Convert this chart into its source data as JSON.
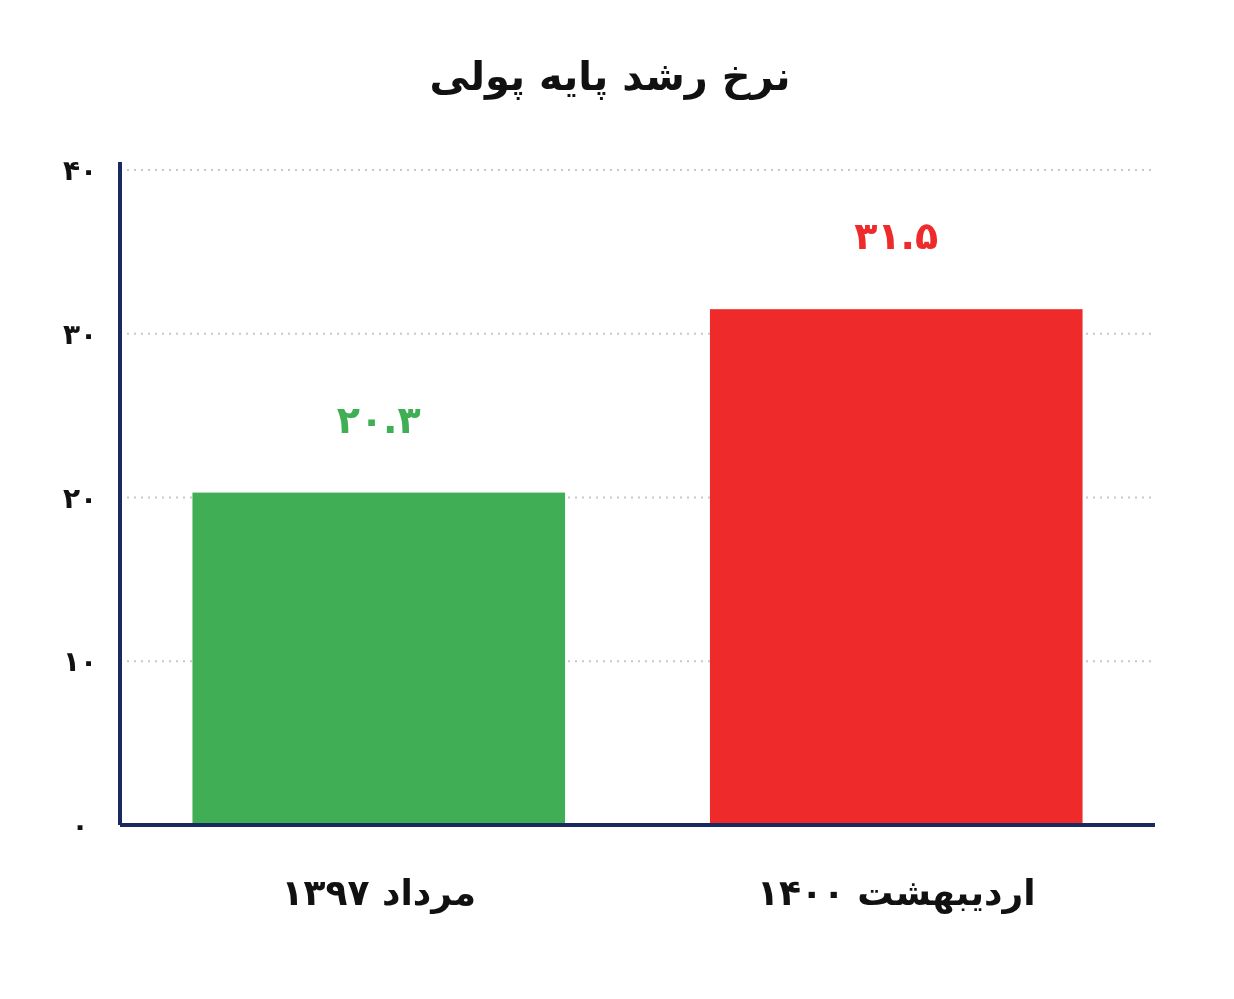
{
  "chart_data": {
    "type": "bar",
    "title": "نرخ رشد پایه پولی",
    "categories": [
      "مرداد ۱۳۹۷",
      "اردیبهشت ۱۴۰۰"
    ],
    "values": [
      20.3,
      31.5
    ],
    "colors": [
      "#3fae55",
      "#ee2a2a"
    ],
    "value_labels": [
      "۲۰.۳",
      "۳۱.۵"
    ],
    "ylim": [
      0,
      40
    ],
    "yticks": [
      {
        "value": 0,
        "label": "۰"
      },
      {
        "value": 10,
        "label": "۱۰"
      },
      {
        "value": 20,
        "label": "۲۰"
      },
      {
        "value": 30,
        "label": "۳۰"
      },
      {
        "value": 40,
        "label": "۴۰"
      }
    ],
    "grid": "y"
  }
}
